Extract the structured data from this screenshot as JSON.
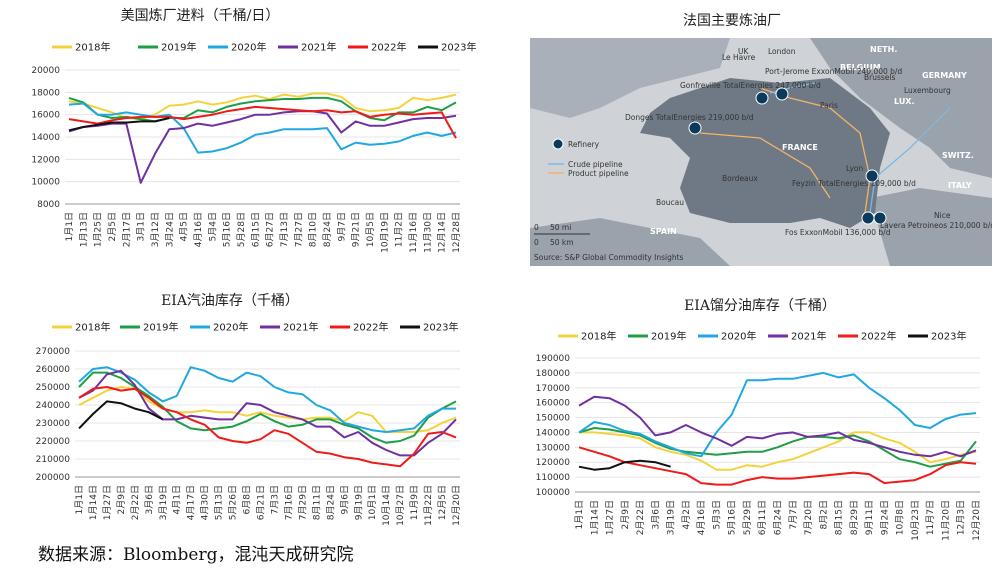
{
  "source": "数据来源：Bloomberg，混沌天成研究院",
  "map": {
    "title": "法国主要炼油厂",
    "countries": [
      "UK",
      "London",
      "NETH.",
      "BELGIUM",
      "Brussels",
      "GERMANY",
      "LUX.",
      "Luxembourg",
      "FRANCE",
      "SWITZ.",
      "ITALY",
      "SPAIN",
      "Paris",
      "Lyon",
      "Bordeaux",
      "Boucau",
      "Nice",
      "Le Havre"
    ],
    "refineries": [
      {
        "label": "Port-Jerome ExxonMobil 240,000 b/d"
      },
      {
        "label": "Gonfreville TotalEnergies 247,000 b/d"
      },
      {
        "label": "Donges TotalEnergies 219,000 b/d"
      },
      {
        "label": "Feyzin TotalEnergies 109,000 b/d"
      },
      {
        "label": "Fos ExxonMobil 136,000 b/d"
      },
      {
        "label": "Lavera Petroineos 210,000 b/d"
      }
    ],
    "legend": {
      "refinery": "Refinery",
      "crude": "Crude pipeline",
      "product": "Product pipeline"
    },
    "scale": [
      "0",
      "50 mi",
      "0",
      "50 km"
    ],
    "credit": "Source: S&P Global Commodity Insights"
  },
  "chart_data": [
    {
      "type": "line",
      "title": "美国炼厂进料（千桶/日）",
      "x_ticks": [
        "1月1日",
        "1月13日",
        "1月25日",
        "2月5日",
        "2月17日",
        "3月1日",
        "3月12日",
        "3月24日",
        "4月5日",
        "4月16日",
        "5月4日",
        "5月16日",
        "5月28日",
        "6月15日",
        "6月27日",
        "7月13日",
        "7月27日",
        "8月10日",
        "8月24日",
        "9月7日",
        "9月21日",
        "10月5日",
        "10月19日",
        "11月2日",
        "11月16日",
        "11月30日",
        "12月14日",
        "12月28日"
      ],
      "y_ticks": [
        "20000",
        "18000",
        "16000",
        "14000",
        "12000",
        "10000",
        "8000"
      ],
      "ylim": [
        8000,
        20000
      ],
      "series": [
        {
          "name": "2018年",
          "color": "#F5D23C",
          "values": [
            17200,
            17000,
            16600,
            16200,
            15700,
            15600,
            16000,
            16800,
            16900,
            17200,
            16900,
            17100,
            17500,
            17700,
            17400,
            17800,
            17600,
            17900,
            17900,
            17600,
            16600,
            16300,
            16400,
            16600,
            17500,
            17300,
            17500,
            17800
          ]
        },
        {
          "name": "2019年",
          "color": "#1E9E46",
          "values": [
            17500,
            17100,
            16000,
            15700,
            15800,
            15600,
            15400,
            15700,
            15700,
            16400,
            16200,
            16700,
            17000,
            17200,
            17300,
            17400,
            17400,
            17500,
            17500,
            17200,
            16300,
            15700,
            15500,
            16200,
            16200,
            16700,
            16400,
            17100
          ]
        },
        {
          "name": "2020年",
          "color": "#20A8E0",
          "values": [
            16900,
            17000,
            16000,
            16000,
            16200,
            16000,
            15800,
            16000,
            14800,
            12600,
            12700,
            13000,
            13500,
            14200,
            14400,
            14700,
            14700,
            14700,
            14800,
            12900,
            13500,
            13300,
            13400,
            13600,
            14100,
            14400,
            14100,
            14400
          ]
        },
        {
          "name": "2021年",
          "color": "#7030A0",
          "values": [
            14500,
            14900,
            15000,
            15200,
            15200,
            9900,
            12500,
            14700,
            14800,
            15200,
            15000,
            15300,
            15600,
            16000,
            16000,
            16200,
            16300,
            16300,
            16100,
            14400,
            15400,
            15000,
            15000,
            15300,
            15600,
            15700,
            15700,
            15900
          ]
        },
        {
          "name": "2022年",
          "color": "#EE1B1B",
          "values": [
            15600,
            15400,
            15200,
            15500,
            15700,
            15800,
            15800,
            15800,
            15600,
            15800,
            16000,
            16300,
            16500,
            16700,
            16600,
            16500,
            16400,
            16300,
            16400,
            16200,
            16300,
            15800,
            16000,
            16100,
            16000,
            16100,
            16200,
            13900
          ]
        },
        {
          "name": "2023年",
          "color": "#111111",
          "values": [
            14600,
            14900,
            15100,
            15300,
            15300,
            15400,
            15400,
            15700,
            null,
            null,
            null,
            null,
            null,
            null,
            null,
            null,
            null,
            null,
            null,
            null,
            null,
            null,
            null,
            null,
            null,
            null,
            null,
            null
          ]
        }
      ]
    },
    {
      "type": "line",
      "title": "EIA汽油库存（千桶）",
      "x_ticks": [
        "1月1日",
        "1月14日",
        "1月27日",
        "2月9日",
        "2月22日",
        "3月6日",
        "3月19日",
        "4月1日",
        "4月17日",
        "4月30日",
        "5月13日",
        "5月26日",
        "6月8日",
        "6月21日",
        "7月3日",
        "7月16日",
        "7月29日",
        "8月11日",
        "8月24日",
        "9月6日",
        "9月19日",
        "10月1日",
        "10月14日",
        "10月27日",
        "11月9日",
        "11月22日",
        "12月5日",
        "12月20日"
      ],
      "y_ticks": [
        "270000",
        "260000",
        "250000",
        "240000",
        "230000",
        "220000",
        "210000",
        "200000"
      ],
      "ylim": [
        200000,
        270000
      ],
      "series": [
        {
          "name": "2018年",
          "color": "#F5D23C",
          "values": [
            240000,
            244000,
            248000,
            250000,
            249000,
            242000,
            238000,
            236000,
            236000,
            237000,
            236000,
            236000,
            234000,
            236000,
            234000,
            233000,
            232000,
            233000,
            233000,
            231000,
            236000,
            234000,
            225000,
            225000,
            225000,
            226000,
            230000,
            233000
          ]
        },
        {
          "name": "2019年",
          "color": "#1E9E46",
          "values": [
            250000,
            258000,
            258000,
            255000,
            250000,
            245000,
            239000,
            231000,
            227000,
            226000,
            227000,
            228000,
            231000,
            235000,
            231000,
            228000,
            229000,
            232000,
            232000,
            229000,
            227000,
            222000,
            219000,
            220000,
            223000,
            233000,
            238000,
            242000
          ]
        },
        {
          "name": "2020年",
          "color": "#20A8E0",
          "values": [
            253000,
            260000,
            261000,
            258000,
            254000,
            247000,
            242000,
            245000,
            261000,
            259000,
            255000,
            253000,
            258000,
            256000,
            250000,
            247000,
            246000,
            240000,
            237000,
            230000,
            228000,
            226000,
            225000,
            226000,
            227000,
            234000,
            238000,
            238000
          ]
        },
        {
          "name": "2021年",
          "color": "#7030A0",
          "values": [
            244000,
            248000,
            257000,
            259000,
            251000,
            238000,
            232000,
            232000,
            234000,
            233000,
            232000,
            232000,
            241000,
            240000,
            236000,
            234000,
            232000,
            228000,
            228000,
            222000,
            225000,
            219000,
            215000,
            212000,
            212000,
            219000,
            224000,
            232000
          ]
        },
        {
          "name": "2022年",
          "color": "#EE1B1B",
          "values": [
            244000,
            249000,
            250000,
            248000,
            249000,
            244000,
            238000,
            236000,
            232000,
            229000,
            222000,
            220000,
            219000,
            221000,
            226000,
            224000,
            219000,
            214000,
            213000,
            211000,
            210000,
            208000,
            207000,
            206000,
            213000,
            224000,
            225000,
            222000
          ]
        },
        {
          "name": "2023年",
          "color": "#111111",
          "values": [
            227000,
            235000,
            242000,
            241000,
            238000,
            236000,
            232000,
            null,
            null,
            null,
            null,
            null,
            null,
            null,
            null,
            null,
            null,
            null,
            null,
            null,
            null,
            null,
            null,
            null,
            null,
            null,
            null,
            null
          ]
        }
      ]
    },
    {
      "type": "line",
      "title": "EIA馏分油库存（千桶）",
      "x_ticks": [
        "1月1日",
        "1月14日",
        "1月27日",
        "2月9日",
        "2月22日",
        "3月6日",
        "3月19日",
        "4月2日",
        "4月16日",
        "5月3日",
        "5月16日",
        "5月29日",
        "6月11日",
        "6月24日",
        "7月7日",
        "7月20日",
        "8月2日",
        "8月15日",
        "8月29日",
        "9月11日",
        "9月24日",
        "10月8日",
        "10月23日",
        "11月7日",
        "11月20日",
        "12月3日",
        "12月20日"
      ],
      "y_ticks": [
        "190000",
        "180000",
        "170000",
        "160000",
        "150000",
        "140000",
        "130000",
        "120000",
        "110000",
        "100000"
      ],
      "ylim": [
        100000,
        190000
      ],
      "series": [
        {
          "name": "2018年",
          "color": "#F5D23C",
          "values": [
            140000,
            140000,
            139000,
            138000,
            136000,
            130000,
            127000,
            125000,
            121000,
            115000,
            115000,
            118000,
            117000,
            120000,
            122000,
            126000,
            130000,
            134000,
            140000,
            140000,
            136000,
            133000,
            127000,
            120000,
            122000,
            125000,
            127000
          ]
        },
        {
          "name": "2019年",
          "color": "#1E9E46",
          "values": [
            140000,
            143000,
            142000,
            140000,
            138000,
            133000,
            129000,
            127000,
            126000,
            125000,
            126000,
            127000,
            127000,
            130000,
            134000,
            137000,
            137000,
            136000,
            138000,
            134000,
            128000,
            122000,
            120000,
            117000,
            119000,
            121000,
            134000
          ]
        },
        {
          "name": "2020年",
          "color": "#20A8E0",
          "values": [
            140000,
            147000,
            145000,
            141000,
            139000,
            134000,
            130000,
            126000,
            124000,
            140000,
            152000,
            175000,
            175000,
            176000,
            176000,
            178000,
            180000,
            177000,
            179000,
            170000,
            163000,
            155000,
            145000,
            143000,
            149000,
            152000,
            153000
          ]
        },
        {
          "name": "2021年",
          "color": "#7030A0",
          "values": [
            158000,
            164000,
            163000,
            158000,
            150000,
            138000,
            140000,
            145000,
            140000,
            136000,
            131000,
            137000,
            136000,
            139000,
            140000,
            137000,
            138000,
            140000,
            135000,
            133000,
            130000,
            127000,
            125000,
            124000,
            127000,
            124000,
            128000
          ]
        },
        {
          "name": "2022年",
          "color": "#EE1B1B",
          "values": [
            130000,
            127000,
            124000,
            120000,
            118000,
            116000,
            114000,
            112000,
            106000,
            105000,
            105000,
            108000,
            110000,
            109000,
            109000,
            110000,
            111000,
            112000,
            113000,
            112000,
            106000,
            107000,
            108000,
            112000,
            118000,
            120000,
            119000
          ]
        },
        {
          "name": "2023年",
          "color": "#111111",
          "values": [
            117000,
            115000,
            116000,
            120000,
            121000,
            120000,
            117000,
            null,
            null,
            null,
            null,
            null,
            null,
            null,
            null,
            null,
            null,
            null,
            null,
            null,
            null,
            null,
            null,
            null,
            null,
            null,
            null
          ]
        }
      ]
    }
  ]
}
